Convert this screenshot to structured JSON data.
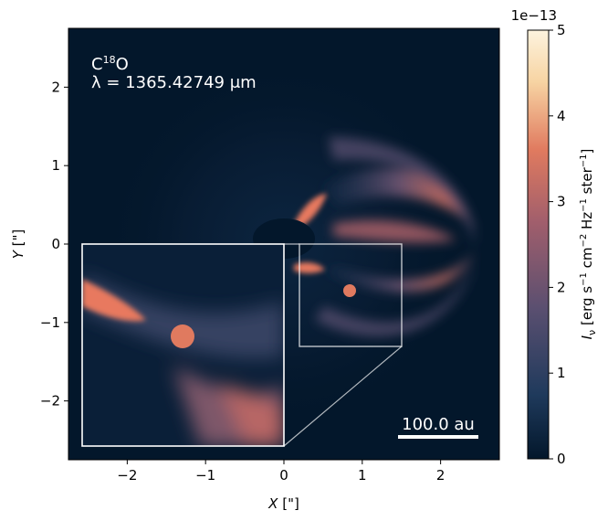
{
  "chart_data": {
    "type": "heatmap",
    "title": "",
    "xlabel": "X [\"]",
    "ylabel": "Y [\"]",
    "x_label_var": "X",
    "x_label_unit": " [\"]",
    "y_label_var": "Y",
    "y_label_unit": " [\"]",
    "xlim": [
      -2.75,
      2.75
    ],
    "ylim": [
      -2.75,
      2.75
    ],
    "xticks": [
      -2,
      -1,
      0,
      1,
      2
    ],
    "yticks": [
      -2,
      -1,
      0,
      1,
      2
    ],
    "xtick_labels": [
      "−2",
      "−1",
      "0",
      "1",
      "2"
    ],
    "ytick_labels": [
      "−2",
      "−1",
      "0",
      "1",
      "2"
    ],
    "species_label": "C18O",
    "species_base": "C",
    "species_superscript": "18",
    "species_tail": "O",
    "wavelength_label": "λ = 1365.42749 μm",
    "scalebar_label": "100.0 au",
    "colorbar": {
      "label": "I_ν [erg s−1 cm−2 Hz−1 ster−1]",
      "label_parts": {
        "sym": "I",
        "sub": "ν",
        "p1": " [erg s",
        "e1": "−1",
        "p2": " cm",
        "e2": "−2",
        "p3": " Hz",
        "e3": "−1",
        "p4": " ster",
        "e4": "−1",
        "p5": "]"
      },
      "range": [
        0,
        5
      ],
      "ticks": [
        0,
        1,
        2,
        3,
        4,
        5
      ],
      "tick_labels": [
        "0",
        "1",
        "2",
        "3",
        "4",
        "5"
      ],
      "multiplier": "1e−13",
      "colormap": [
        "#03172b",
        "#1f3a5c",
        "#5a4f70",
        "#a05e6c",
        "#e07a5f",
        "#f7d4a3",
        "#fdf3de"
      ]
    },
    "features": {
      "central_hole_radius_arcsec": 0.4,
      "planet_position_arcsec": [
        0.85,
        -0.6
      ],
      "planet_radius_arcsec": 0.08,
      "outer_arc_peak_x_arcsec": 2.0,
      "zoom_source_box_arcsec": [
        0.2,
        -1.3,
        1.5,
        0.0
      ],
      "zoom_inset_box_arcsec": [
        -2.6,
        -2.6,
        0.0,
        0.0
      ]
    },
    "grid": false
  },
  "colors": {
    "background_min": "#03172b",
    "emission_peak": "#e07a5f",
    "box_outline": "#ffffff",
    "annotation_text": "#ffffff"
  }
}
